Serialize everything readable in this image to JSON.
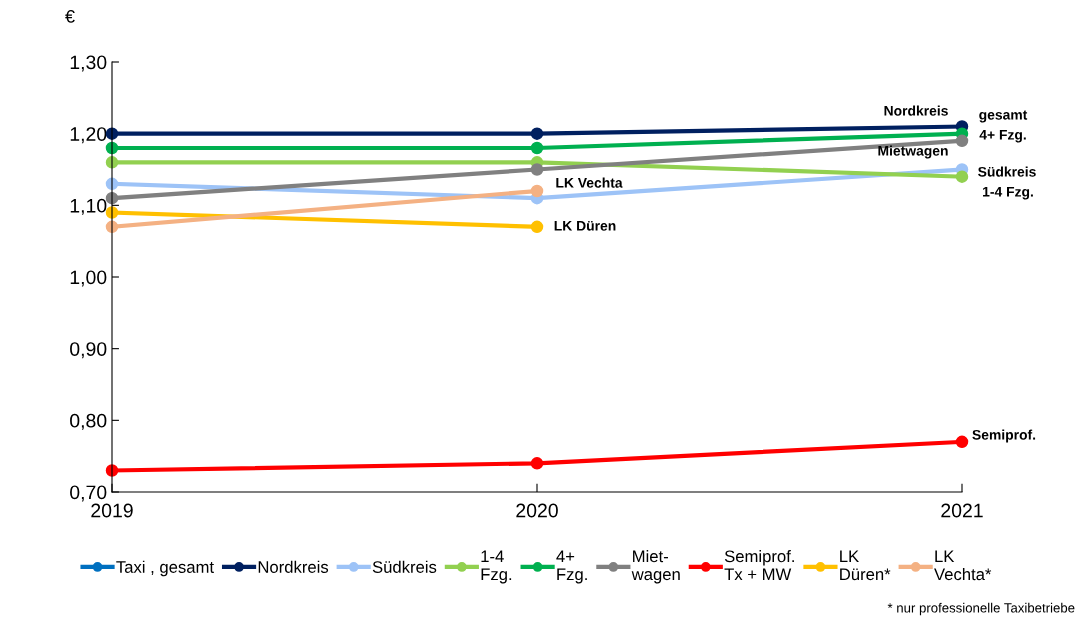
{
  "chart_data": {
    "type": "line",
    "ylabel": "€",
    "x": [
      2019,
      2020,
      2021
    ],
    "xlim": [
      2019,
      2021
    ],
    "xticks": [
      2019,
      2020,
      2021
    ],
    "ylim": [
      0.7,
      1.3
    ],
    "yticks": [
      {
        "value": 0.7,
        "label": "0,70"
      },
      {
        "value": 0.8,
        "label": "0,80"
      },
      {
        "value": 0.9,
        "label": "0,90"
      },
      {
        "value": 1.0,
        "label": "1,00"
      },
      {
        "value": 1.1,
        "label": "1,10"
      },
      {
        "value": 1.2,
        "label": "1,20"
      },
      {
        "value": 1.3,
        "label": "1,30"
      }
    ],
    "grid": false,
    "legend": "bottom",
    "marker": "circle",
    "line_style": "solid",
    "series": [
      {
        "name": "Taxi , gesamt",
        "color": "#0070c0",
        "values": [
          null,
          null,
          null
        ]
      },
      {
        "name": "Nordkreis",
        "color": "#002060",
        "values": [
          1.2,
          1.2,
          1.21
        ]
      },
      {
        "name": "Südkreis",
        "color": "#9dc3f7",
        "values": [
          1.13,
          1.11,
          1.15
        ]
      },
      {
        "name": "1-4\nFzg.",
        "color": "#92d050",
        "values": [
          1.16,
          1.16,
          1.14
        ]
      },
      {
        "name": "4+\nFzg.",
        "color": "#00b050",
        "values": [
          1.18,
          1.18,
          1.2
        ]
      },
      {
        "name": "Miet-\nwagen",
        "color": "#808080",
        "values": [
          1.11,
          1.15,
          1.19
        ]
      },
      {
        "name": "Semiprof.\nTx + MW",
        "color": "#ff0000",
        "values": [
          0.73,
          0.74,
          0.77
        ]
      },
      {
        "name": "LK\nDüren*",
        "color": "#ffc000",
        "values": [
          1.09,
          1.07,
          null
        ]
      },
      {
        "name": "LK\nVechta*",
        "color": "#f4b183",
        "values": [
          1.07,
          1.12,
          null
        ]
      }
    ],
    "annotations": [
      "Nordkreis",
      "gesamt",
      "4+ Fzg.",
      "Mietwagen",
      "Südkreis",
      "1-4 Fzg.",
      "LK Vechta",
      "LK Düren",
      "Semiprof.",
      "* nur professionelle Taxibetriebe"
    ]
  }
}
